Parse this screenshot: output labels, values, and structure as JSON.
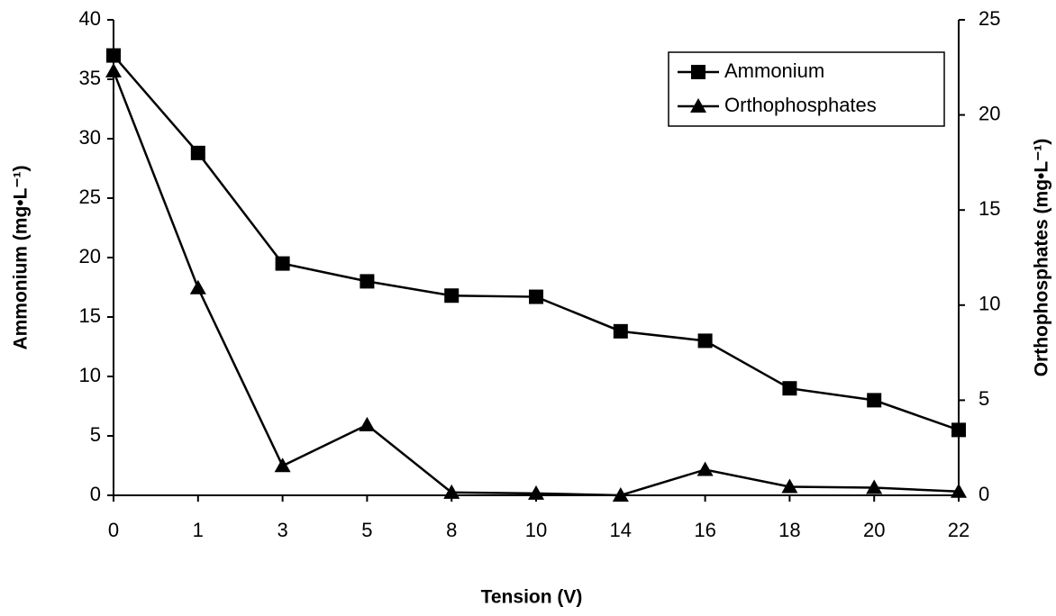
{
  "chart_data": {
    "type": "line",
    "x_label": "Tension (V)",
    "y_label": "Ammonium (mg•L⁻¹)",
    "y2_label": "Orthophosphates (mg•L⁻¹)",
    "categories": [
      "0",
      "1",
      "3",
      "5",
      "8",
      "10",
      "14",
      "16",
      "18",
      "20",
      "22"
    ],
    "series": [
      {
        "name": "Ammonium",
        "color": "#000000",
        "marker": "square",
        "values": [
          37,
          28.8,
          19.5,
          18,
          16.8,
          16.7,
          13.8,
          13,
          9,
          8,
          5.5
        ]
      },
      {
        "name": "Orthophosphates",
        "color": "#000000",
        "marker": "triangle",
        "axis": "y2",
        "values": [
          22.3,
          10.9,
          1.55,
          3.7,
          0.15,
          0.1,
          0,
          1.35,
          0.45,
          0.4,
          0.2
        ]
      }
    ],
    "ylim": [
      0,
      40
    ],
    "yticks": [
      0,
      5,
      10,
      15,
      20,
      25,
      30,
      35,
      40
    ],
    "y2lim": [
      0,
      25
    ],
    "y2ticks": [
      0,
      5,
      10,
      15,
      20,
      25
    ],
    "legend": "top-right",
    "grid": false
  }
}
